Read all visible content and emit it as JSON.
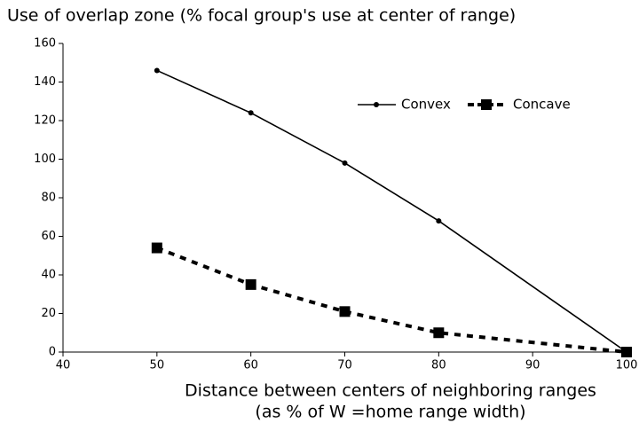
{
  "chart_data": {
    "type": "line",
    "title": "Use of overlap zone (% focal group's use at center of range)",
    "xlabel": [
      "Distance between centers of neighboring ranges",
      "(as % of W =home range width)"
    ],
    "xlim": [
      40,
      100
    ],
    "xticks": [
      40,
      50,
      60,
      70,
      80,
      90,
      100
    ],
    "ylim": [
      0,
      160
    ],
    "yticks": [
      0,
      20,
      40,
      60,
      80,
      100,
      120,
      140,
      160
    ],
    "series": [
      {
        "name": "Convex",
        "color": "#000000",
        "marker": "circle",
        "dashed": false,
        "x": [
          50,
          60,
          70,
          80,
          100
        ],
        "values": [
          146,
          124,
          98,
          68,
          0
        ]
      },
      {
        "name": "Concave",
        "color": "#000000",
        "marker": "square",
        "dashed": true,
        "x": [
          50,
          60,
          70,
          80,
          100
        ],
        "values": [
          54,
          35,
          21,
          10,
          0
        ]
      }
    ],
    "legend": "upper right"
  }
}
